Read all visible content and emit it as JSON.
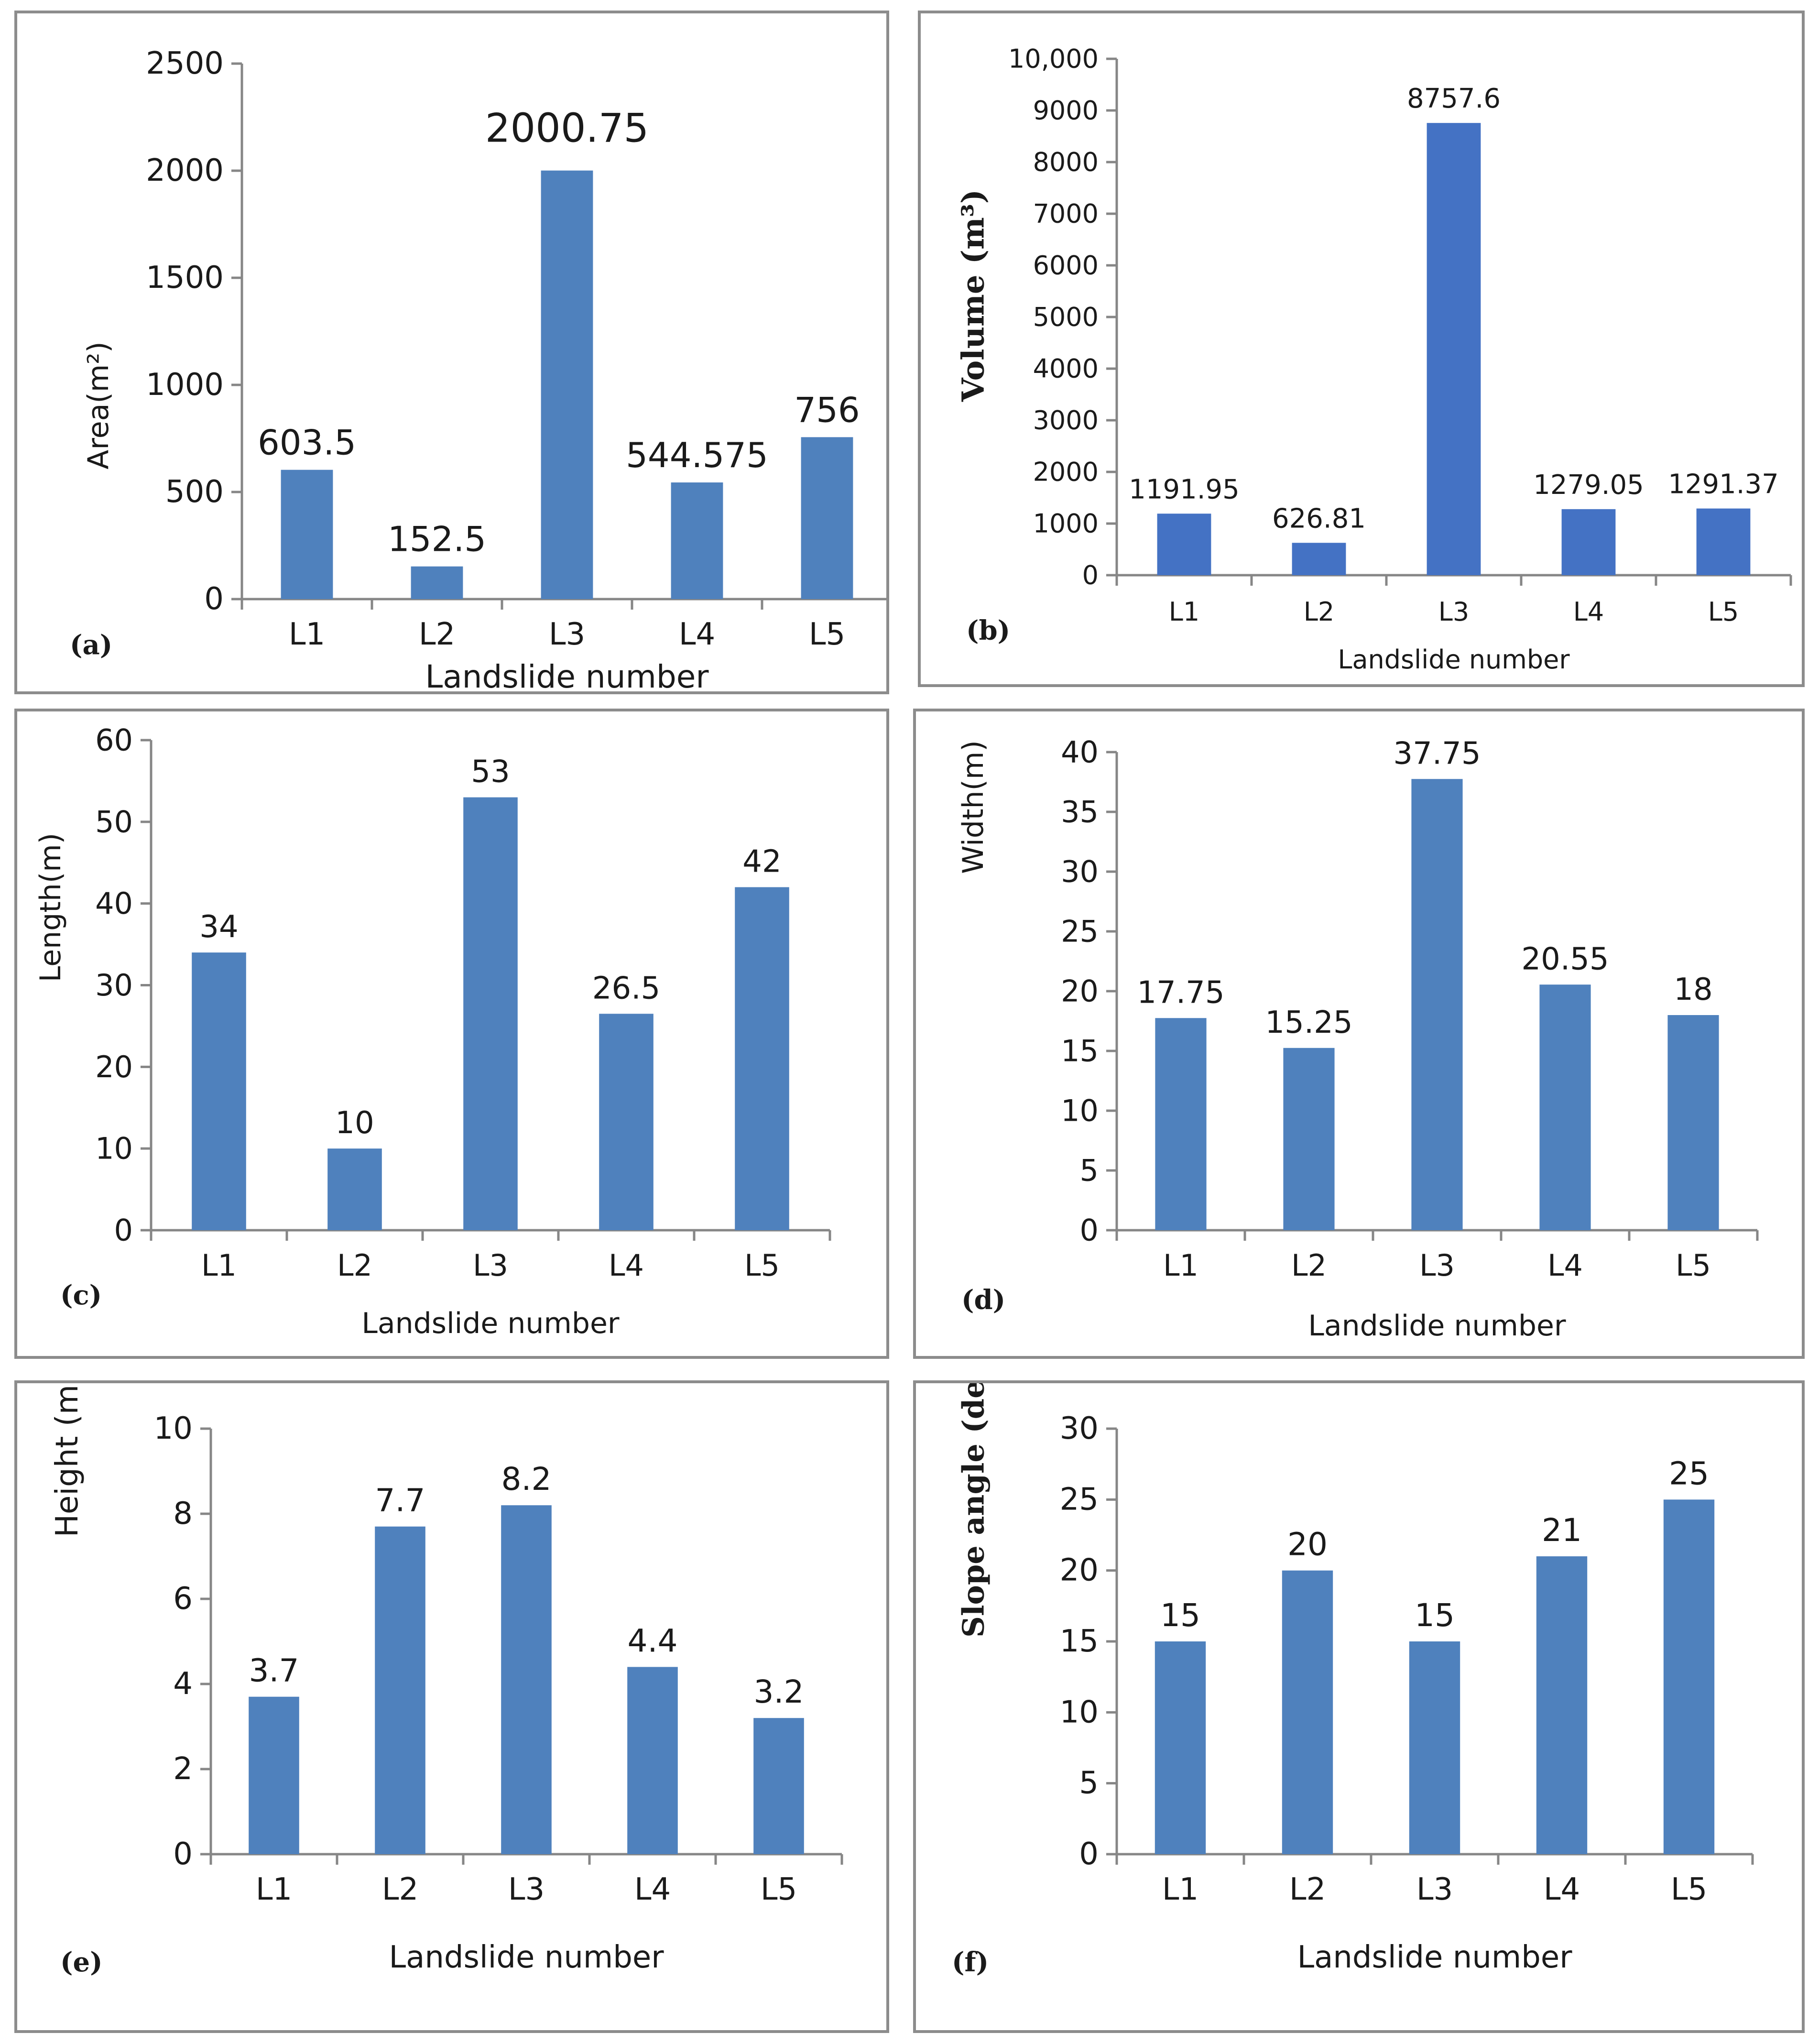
{
  "chart_data": [
    {
      "type": "bar",
      "panel_label": "(a)",
      "categories": [
        "L1",
        "L2",
        "L3",
        "L4",
        "L5"
      ],
      "values": [
        603.5,
        152.5,
        2000.75,
        544.575,
        756
      ],
      "data_labels": [
        "603.5",
        "152.5",
        "2000.75",
        "544.575",
        "756"
      ],
      "ylabel": "Area(m²)",
      "xlabel": "Landslide number",
      "ylim": [
        0,
        2500
      ],
      "yticks": [
        "0",
        "500",
        "1000",
        "1500",
        "2000",
        "2500"
      ],
      "ytick_values": [
        0,
        500,
        1000,
        1500,
        2000,
        2500
      ],
      "color": "#4f81bd"
    },
    {
      "type": "bar",
      "panel_label": "(b)",
      "categories": [
        "L1",
        "L2",
        "L3",
        "L4",
        "L5"
      ],
      "values": [
        1191.95,
        626.81,
        8757.6,
        1279.05,
        1291.37
      ],
      "data_labels": [
        "1191.95",
        "626.81",
        "8757.6",
        "1279.05",
        "1291.37"
      ],
      "ylabel": "Volume (m³)",
      "xlabel": "Landslide number",
      "ylim": [
        0,
        10000
      ],
      "yticks": [
        "0",
        "1000",
        "2000",
        "3000",
        "4000",
        "5000",
        "6000",
        "7000",
        "8000",
        "9000",
        "10,000"
      ],
      "ytick_values": [
        0,
        1000,
        2000,
        3000,
        4000,
        5000,
        6000,
        7000,
        8000,
        9000,
        10000
      ],
      "color": "#4472c4"
    },
    {
      "type": "bar",
      "panel_label": "(c)",
      "categories": [
        "L1",
        "L2",
        "L3",
        "L4",
        "L5"
      ],
      "values": [
        34,
        10,
        53,
        26.5,
        42
      ],
      "data_labels": [
        "34",
        "10",
        "53",
        "26.5",
        "42"
      ],
      "ylabel": "Length(m)",
      "xlabel": "Landslide number",
      "ylim": [
        0,
        60
      ],
      "yticks": [
        "0",
        "10",
        "20",
        "30",
        "40",
        "50",
        "60"
      ],
      "ytick_values": [
        0,
        10,
        20,
        30,
        40,
        50,
        60
      ],
      "color": "#4f81bd"
    },
    {
      "type": "bar",
      "panel_label": "(d)",
      "categories": [
        "L1",
        "L2",
        "L3",
        "L4",
        "L5"
      ],
      "values": [
        17.75,
        15.25,
        37.75,
        20.55,
        18
      ],
      "data_labels": [
        "17.75",
        "15.25",
        "37.75",
        "20.55",
        "18"
      ],
      "ylabel": "Width(m)",
      "xlabel": "Landslide number",
      "ylim": [
        0,
        40
      ],
      "yticks": [
        "0",
        "5",
        "10",
        "15",
        "20",
        "25",
        "30",
        "35",
        "40"
      ],
      "ytick_values": [
        0,
        5,
        10,
        15,
        20,
        25,
        30,
        35,
        40
      ],
      "color": "#4f81bd"
    },
    {
      "type": "bar",
      "panel_label": "(e)",
      "categories": [
        "L1",
        "L2",
        "L3",
        "L4",
        "L5"
      ],
      "values": [
        3.7,
        7.7,
        8.2,
        4.4,
        3.2
      ],
      "data_labels": [
        "3.7",
        "7.7",
        "8.2",
        "4.4",
        "3.2"
      ],
      "ylabel": "Height (m)",
      "xlabel": "Landslide number",
      "ylim": [
        0,
        10
      ],
      "yticks": [
        "0",
        "2",
        "4",
        "6",
        "8",
        "10"
      ],
      "ytick_values": [
        0,
        2,
        4,
        6,
        8,
        10
      ],
      "color": "#4f81bd"
    },
    {
      "type": "bar",
      "panel_label": "(f)",
      "categories": [
        "L1",
        "L2",
        "L3",
        "L4",
        "L5"
      ],
      "values": [
        15,
        20,
        15,
        21,
        25
      ],
      "data_labels": [
        "15",
        "20",
        "15",
        "21",
        "25"
      ],
      "ylabel": "Slope angle (degree)",
      "xlabel": "Landslide number",
      "ylim": [
        0,
        30
      ],
      "yticks": [
        "0",
        "5",
        "10",
        "15",
        "20",
        "25",
        "30"
      ],
      "ytick_values": [
        0,
        5,
        10,
        15,
        20,
        25,
        30
      ],
      "color": "#4f81bd"
    }
  ]
}
